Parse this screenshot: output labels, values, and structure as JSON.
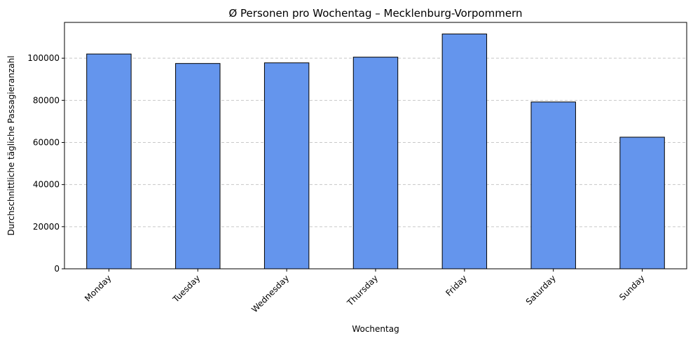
{
  "chart_data": {
    "type": "bar",
    "title": "Ø Personen pro Wochentag – Mecklenburg-Vorpommern",
    "xlabel": "Wochentag",
    "ylabel": "Durchschnittliche tägliche Passagieranzahl",
    "categories": [
      "Monday",
      "Tuesday",
      "Wednesday",
      "Thursday",
      "Friday",
      "Saturday",
      "Sunday"
    ],
    "values": [
      102000,
      97500,
      97800,
      100500,
      111500,
      79200,
      62500
    ],
    "ylim": [
      0,
      117000
    ],
    "yticks": [
      0,
      20000,
      40000,
      60000,
      80000,
      100000
    ],
    "ytick_labels": [
      "0",
      "20000",
      "40000",
      "60000",
      "80000",
      "100000"
    ],
    "bar_color": "#6495ED",
    "grid": "y-dashed",
    "x_tick_rotation": 45
  }
}
